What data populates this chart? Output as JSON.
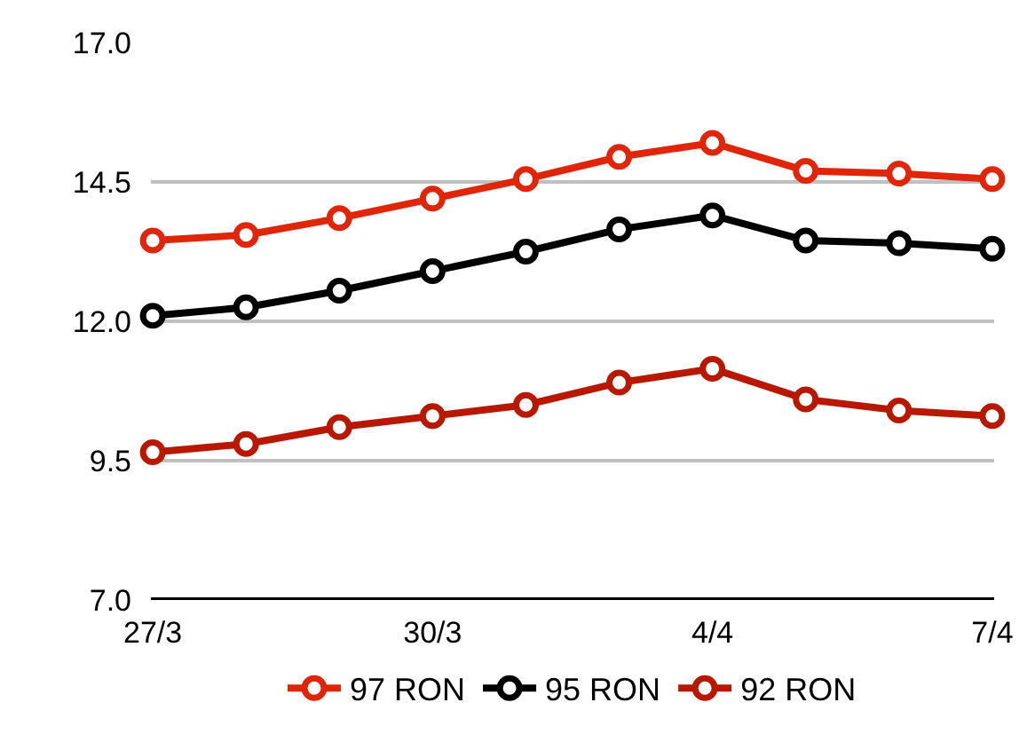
{
  "chart_data": {
    "type": "line",
    "categories": [
      "27/3",
      null,
      null,
      "30/3",
      null,
      null,
      "4/4",
      null,
      null,
      "7/4"
    ],
    "series": [
      {
        "name": "97 RON",
        "color": "#e0260a",
        "values": [
          13.45,
          13.55,
          13.85,
          14.2,
          14.55,
          14.95,
          15.2,
          14.7,
          14.65,
          14.55
        ]
      },
      {
        "name": "95 RON",
        "color": "#000000",
        "values": [
          12.1,
          12.25,
          12.55,
          12.9,
          13.25,
          13.65,
          13.9,
          13.45,
          13.4,
          13.3
        ]
      },
      {
        "name": "92 RON",
        "color": "#b81800",
        "values": [
          9.65,
          9.8,
          10.1,
          10.3,
          10.5,
          10.9,
          11.15,
          10.6,
          10.4,
          10.3
        ]
      }
    ],
    "ylim": [
      7,
      17
    ],
    "yticks": [
      {
        "value": 7,
        "label": "7.0"
      },
      {
        "value": 9.5,
        "label": "9.5"
      },
      {
        "value": 12,
        "label": "12.0"
      },
      {
        "value": 14.5,
        "label": "14.5"
      },
      {
        "value": 17,
        "label": "17.0"
      }
    ],
    "grid": "y",
    "legend": "bottom",
    "marker": "circle",
    "line_style": "solid"
  }
}
